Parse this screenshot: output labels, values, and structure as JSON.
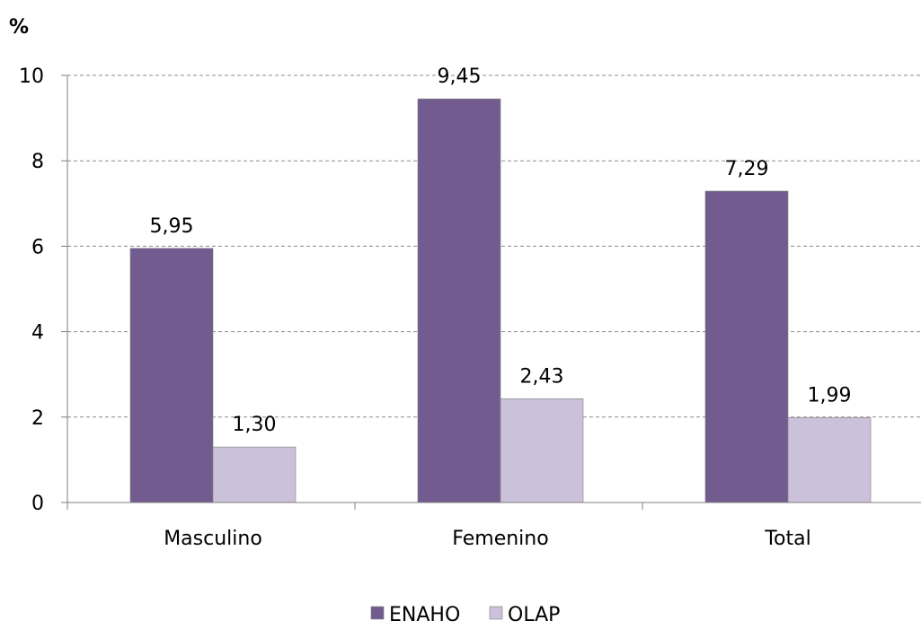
{
  "chart_data": {
    "type": "bar",
    "title": "",
    "xlabel": "",
    "ylabel": "%",
    "ylim": [
      0,
      10
    ],
    "yticks": [
      0,
      2,
      4,
      6,
      8,
      10
    ],
    "categories": [
      "Masculino",
      "Femenino",
      "Total"
    ],
    "series": [
      {
        "name": "ENAHO",
        "values": [
          5.95,
          9.45,
          7.29
        ],
        "labels": [
          "5,95",
          "9,45",
          "7,29"
        ]
      },
      {
        "name": "OLAP",
        "values": [
          1.3,
          2.43,
          1.99
        ],
        "labels": [
          "1,30",
          "2,43",
          "1,99"
        ]
      }
    ],
    "grid": "horizontal-dashed",
    "legend_position": "bottom-center"
  },
  "colors": {
    "ENAHO": "#725b8f",
    "OLAP": "#ccc1da",
    "grid": "#8c8c8c",
    "axis": "#808080"
  }
}
